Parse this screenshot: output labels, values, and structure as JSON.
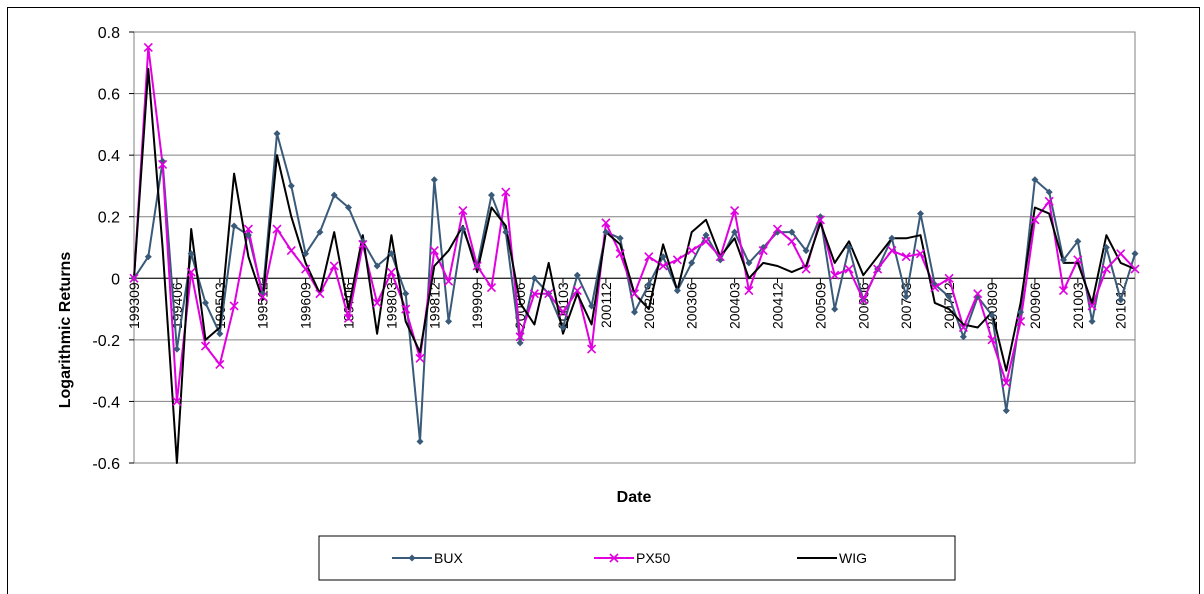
{
  "chart_data": {
    "type": "line",
    "xlabel": "Date",
    "ylabel": "Logarithmic Returns",
    "ylim": [
      -0.6,
      0.8
    ],
    "yticks": [
      -0.6,
      -0.4,
      -0.2,
      0,
      0.2,
      0.4,
      0.6,
      0.8
    ],
    "ytick_labels": [
      "-0.6",
      "-0.4",
      "-0.2",
      "0",
      "0.2",
      "0.4",
      "0.6",
      "0.8"
    ],
    "xtick_labels": [
      "199309",
      "199406",
      "199503",
      "199512",
      "199609",
      "199706",
      "199803",
      "199812",
      "199909",
      "200006",
      "200103",
      "200112",
      "200209",
      "200306",
      "200403",
      "200412",
      "200509",
      "200606",
      "200703",
      "200712",
      "200809",
      "200906",
      "201003",
      "201012"
    ],
    "grid": "horizontal",
    "legend_position": "bottom",
    "colors": {
      "BUX": "#3a5a7a",
      "PX50": "#e000e0",
      "WIG": "#000000"
    },
    "series": [
      {
        "name": "BUX",
        "marker": "diamond",
        "values": [
          0.0,
          0.07,
          0.38,
          -0.23,
          0.08,
          -0.08,
          -0.18,
          0.17,
          0.14,
          -0.05,
          0.47,
          0.3,
          0.08,
          0.15,
          0.27,
          0.23,
          0.12,
          0.04,
          0.08,
          -0.05,
          -0.53,
          0.32,
          -0.14,
          0.16,
          0.04,
          0.27,
          0.15,
          -0.21,
          0.0,
          -0.05,
          -0.16,
          0.01,
          -0.09,
          0.15,
          0.13,
          -0.11,
          -0.02,
          0.07,
          -0.04,
          0.05,
          0.14,
          0.06,
          0.15,
          0.05,
          0.1,
          0.15,
          0.15,
          0.09,
          0.2,
          -0.1,
          0.1,
          -0.07,
          0.03,
          0.13,
          -0.06,
          0.21,
          -0.02,
          -0.06,
          -0.19,
          -0.06,
          -0.12,
          -0.43,
          -0.11,
          0.32,
          0.28,
          0.06,
          0.12,
          -0.14,
          0.1,
          -0.07,
          0.08
        ]
      },
      {
        "name": "PX50",
        "marker": "x",
        "values": [
          0.0,
          0.75,
          0.37,
          -0.4,
          0.02,
          -0.22,
          -0.28,
          -0.09,
          0.16,
          -0.06,
          0.16,
          0.09,
          0.03,
          -0.05,
          0.04,
          -0.13,
          0.11,
          -0.08,
          0.02,
          -0.1,
          -0.26,
          0.09,
          -0.01,
          0.22,
          0.04,
          -0.03,
          0.28,
          -0.19,
          -0.05,
          -0.05,
          -0.11,
          -0.04,
          -0.23,
          0.18,
          0.08,
          -0.05,
          0.07,
          0.04,
          0.06,
          0.09,
          0.12,
          0.07,
          0.22,
          -0.04,
          0.09,
          0.16,
          0.12,
          0.03,
          0.19,
          0.01,
          0.03,
          -0.07,
          0.03,
          0.09,
          0.07,
          0.08,
          -0.03,
          0.0,
          -0.16,
          -0.05,
          -0.2,
          -0.34,
          -0.14,
          0.19,
          0.25,
          -0.04,
          0.06,
          -0.09,
          0.03,
          0.08,
          0.03
        ]
      },
      {
        "name": "WIG",
        "marker": "none",
        "values": [
          0.0,
          0.68,
          0.1,
          -0.6,
          0.16,
          -0.2,
          -0.16,
          0.34,
          0.07,
          -0.07,
          0.4,
          0.2,
          0.05,
          -0.05,
          0.15,
          -0.1,
          0.14,
          -0.18,
          0.14,
          -0.14,
          -0.24,
          0.04,
          0.09,
          0.17,
          0.02,
          0.23,
          0.17,
          -0.08,
          -0.15,
          0.05,
          -0.18,
          -0.05,
          -0.15,
          0.15,
          0.11,
          -0.05,
          -0.1,
          0.11,
          -0.04,
          0.15,
          0.19,
          0.07,
          0.13,
          0.0,
          0.05,
          0.04,
          0.02,
          0.04,
          0.18,
          0.05,
          0.12,
          0.01,
          0.07,
          0.13,
          0.13,
          0.14,
          -0.08,
          -0.1,
          -0.15,
          -0.16,
          -0.11,
          -0.3,
          -0.08,
          0.23,
          0.21,
          0.05,
          0.05,
          -0.08,
          0.14,
          0.05,
          0.03
        ]
      }
    ]
  }
}
